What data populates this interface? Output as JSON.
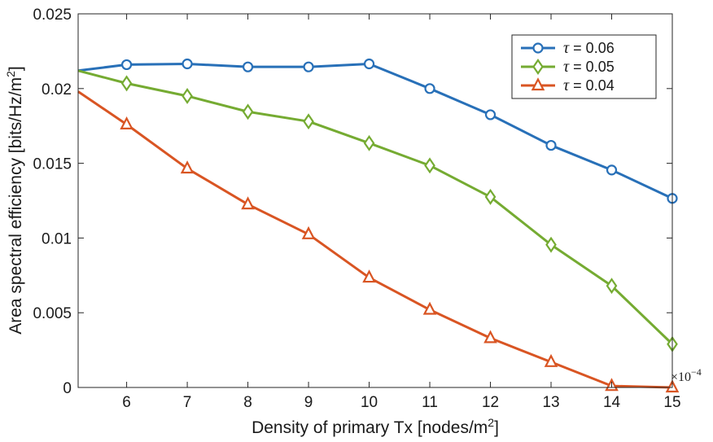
{
  "chart_data": {
    "type": "line",
    "title": "",
    "xlabel": "Density of primary Tx [nodes/m",
    "xlabel_sup": "2",
    "xlabel_suffix": "]",
    "ylabel": "Area spectral efficiency [bits/Hz/m",
    "ylabel_sup": "2",
    "ylabel_suffix": "]",
    "x_multiplier_label": "×10",
    "x_multiplier_exp": "−4",
    "xlim": [
      5.2,
      15
    ],
    "ylim": [
      0,
      0.025
    ],
    "xticks": [
      6,
      7,
      8,
      9,
      10,
      11,
      12,
      13,
      14,
      15
    ],
    "xtick_labels": [
      "6",
      "7",
      "8",
      "9",
      "10",
      "11",
      "12",
      "13",
      "14",
      "15"
    ],
    "yticks": [
      0,
      0.005,
      0.01,
      0.015,
      0.02,
      0.025
    ],
    "ytick_labels": [
      "0",
      "0.005",
      "0.01",
      "0.015",
      "0.02",
      "0.025"
    ],
    "grid": false,
    "legend_position": "top-right",
    "series": [
      {
        "name": "τ = 0.06",
        "symbol": "τ",
        "value_text": " = 0.06",
        "color": "#2870b8",
        "marker": "circle",
        "x": [
          5.2,
          6,
          7,
          8,
          9,
          10,
          11,
          12,
          13,
          14,
          15
        ],
        "values": [
          0.0212,
          0.0216,
          0.02165,
          0.02145,
          0.02145,
          0.02165,
          0.02,
          0.01825,
          0.0162,
          0.01455,
          0.01265
        ]
      },
      {
        "name": "τ = 0.05",
        "symbol": "τ",
        "value_text": " = 0.05",
        "color": "#75ab32",
        "marker": "diamond",
        "x": [
          5.2,
          6,
          7,
          8,
          9,
          10,
          11,
          12,
          13,
          14,
          15
        ],
        "values": [
          0.0212,
          0.02035,
          0.0195,
          0.01845,
          0.0178,
          0.01635,
          0.01485,
          0.01275,
          0.00955,
          0.0068,
          0.0029
        ]
      },
      {
        "name": "τ = 0.04",
        "symbol": "τ",
        "value_text": " = 0.04",
        "color": "#d95523",
        "marker": "triangle",
        "x": [
          5.2,
          6,
          7,
          8,
          9,
          10,
          11,
          12,
          13,
          14,
          15
        ],
        "values": [
          0.0198,
          0.0176,
          0.01465,
          0.01225,
          0.01025,
          0.00735,
          0.0052,
          0.0033,
          0.0017,
          0.0001,
          0.0
        ]
      }
    ]
  }
}
